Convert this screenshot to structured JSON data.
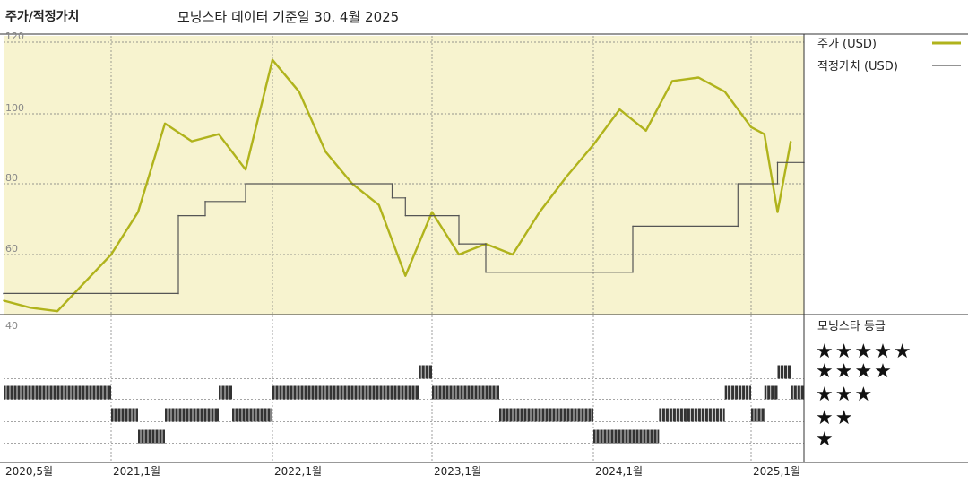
{
  "header": {
    "left_title": "주가/적정가치",
    "center_title": "모닝스타 데이터 기준일 30. 4월 2025"
  },
  "legend": {
    "price_label": "주가 (USD)",
    "fair_label": "적정가치 (USD)",
    "rating_label": "모닝스타 등급",
    "stars": [
      "★★★★★",
      "★★★★",
      "★★★",
      "★★",
      "★"
    ]
  },
  "colors": {
    "price_line": "#b0b31c",
    "fair_line": "#555555",
    "upper_bg": "#f7f3cf",
    "rating_bar": "#333333"
  },
  "chart_data": [
    {
      "type": "line",
      "title": "",
      "y_ticks": [
        "120",
        "100",
        "80",
        "60"
      ],
      "x_ticks": [
        "2020,5월",
        "2021,1월",
        "2022,1월",
        "2023,1월",
        "2024,1월",
        "2025,1월"
      ],
      "ylim": [
        40,
        122
      ],
      "xlim": [
        "2020-05",
        "2025-05"
      ],
      "series": [
        {
          "name": "주가 (USD)",
          "x": [
            "2020-05",
            "2020-07",
            "2020-09",
            "2020-11",
            "2021-01",
            "2021-03",
            "2021-05",
            "2021-07",
            "2021-09",
            "2021-11",
            "2022-01",
            "2022-03",
            "2022-05",
            "2022-07",
            "2022-09",
            "2022-11",
            "2023-01",
            "2023-03",
            "2023-05",
            "2023-07",
            "2023-09",
            "2023-11",
            "2024-01",
            "2024-03",
            "2024-05",
            "2024-07",
            "2024-09",
            "2024-11",
            "2025-01",
            "2025-02",
            "2025-03",
            "2025-04"
          ],
          "values": [
            47,
            45,
            44,
            52,
            60,
            72,
            97,
            92,
            94,
            84,
            115,
            106,
            89,
            80,
            74,
            54,
            72,
            60,
            63,
            60,
            72,
            82,
            91,
            101,
            95,
            109,
            110,
            106,
            96,
            94,
            72,
            92
          ]
        },
        {
          "name": "적정가치 (USD)",
          "x": [
            "2020-05",
            "2021-06",
            "2021-06",
            "2021-08",
            "2021-08",
            "2021-11",
            "2021-11",
            "2022-10",
            "2022-10",
            "2022-11",
            "2022-11",
            "2023-03",
            "2023-03",
            "2023-05",
            "2023-05",
            "2024-04",
            "2024-04",
            "2024-12",
            "2024-12",
            "2025-03",
            "2025-03",
            "2025-05"
          ],
          "values": [
            49,
            49,
            71,
            71,
            75,
            75,
            80,
            80,
            76,
            76,
            71,
            71,
            63,
            63,
            55,
            55,
            68,
            68,
            80,
            80,
            86,
            86
          ]
        }
      ]
    },
    {
      "type": "bar",
      "title": "",
      "y_ticks": [
        "40"
      ],
      "ratings": [
        {
          "from": "2020-05",
          "to": "2021-01",
          "stars": 3
        },
        {
          "from": "2021-01",
          "to": "2021-03",
          "stars": 2
        },
        {
          "from": "2021-03",
          "to": "2021-05",
          "stars": 1
        },
        {
          "from": "2021-05",
          "to": "2021-09",
          "stars": 2
        },
        {
          "from": "2021-09",
          "to": "2021-10",
          "stars": 3
        },
        {
          "from": "2021-10",
          "to": "2022-01",
          "stars": 2
        },
        {
          "from": "2022-01",
          "to": "2022-12",
          "stars": 3
        },
        {
          "from": "2022-12",
          "to": "2023-01",
          "stars": 4
        },
        {
          "from": "2023-01",
          "to": "2023-06",
          "stars": 3
        },
        {
          "from": "2023-06",
          "to": "2024-01",
          "stars": 2
        },
        {
          "from": "2024-01",
          "to": "2024-06",
          "stars": 1
        },
        {
          "from": "2024-06",
          "to": "2024-11",
          "stars": 2
        },
        {
          "from": "2024-11",
          "to": "2025-01",
          "stars": 3
        },
        {
          "from": "2025-01",
          "to": "2025-02",
          "stars": 2
        },
        {
          "from": "2025-02",
          "to": "2025-03",
          "stars": 3
        },
        {
          "from": "2025-03",
          "to": "2025-04",
          "stars": 4
        },
        {
          "from": "2025-04",
          "to": "2025-05",
          "stars": 3
        }
      ]
    }
  ]
}
